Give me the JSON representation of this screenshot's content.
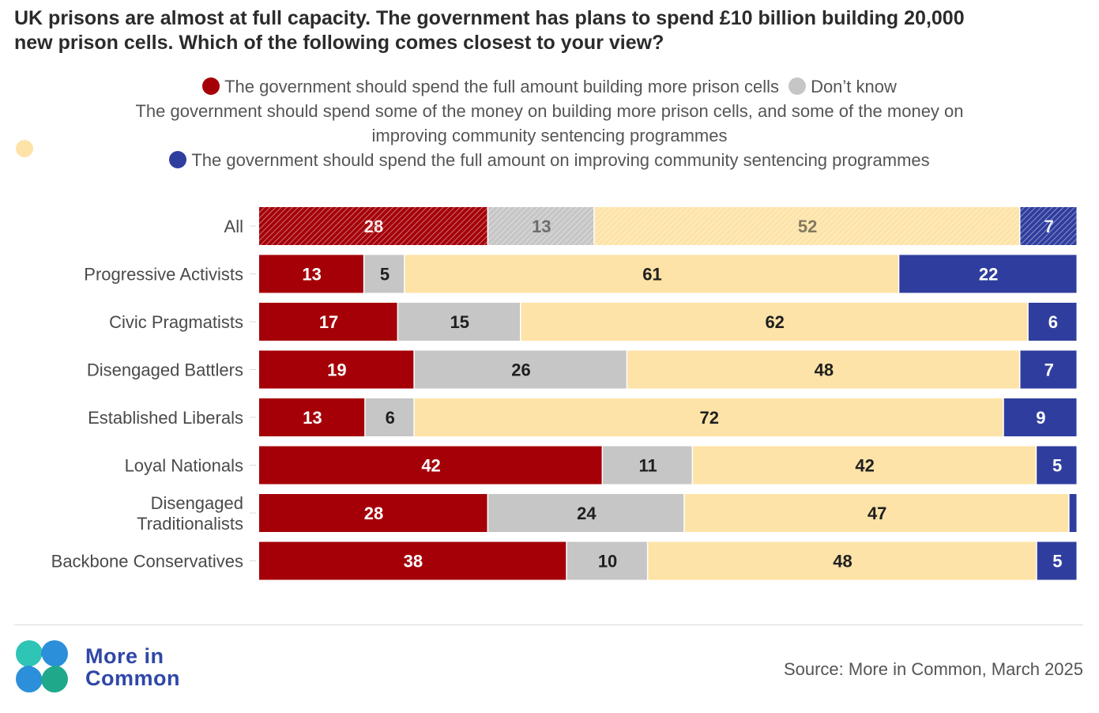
{
  "header": {
    "title": "UK prisons are almost at full capacity. The government has plans to spend £10 billion building 20,000\nnew prison cells. Which of the following comes closest to your view?"
  },
  "legend": {
    "full_cells": "The government should spend the full amount building more prison cells",
    "dont_know": "Don’t know",
    "some_each": "The government should spend some of the money on building more prison cells, and some of the money on\nimproving community sentencing programmes",
    "full_community": "The government should spend the full amount on improving community sentencing programmes"
  },
  "colors": {
    "full_cells": "#a50008",
    "dont_know": "#c6c6c6",
    "some_each": "#fde3a7",
    "full_community": "#2f3e9e"
  },
  "chart_data": {
    "type": "bar",
    "orientation": "horizontal-stacked-100",
    "categories": [
      "All",
      "Progressive Activists",
      "Civic Pragmatists",
      "Disengaged Battlers",
      "Established Liberals",
      "Loyal Nationals",
      "Disengaged\nTraditionalists",
      "Backbone Conservatives"
    ],
    "series": [
      {
        "name": "The government should spend the full amount building more prison cells",
        "color": "#a50008",
        "values": [
          28,
          13,
          17,
          19,
          13,
          42,
          28,
          38
        ]
      },
      {
        "name": "Don’t know",
        "color": "#c6c6c6",
        "values": [
          13,
          5,
          15,
          26,
          6,
          11,
          24,
          10
        ]
      },
      {
        "name": "The government should spend some of the money on building more prison cells, and some of the money on improving community sentencing programmes",
        "color": "#fde3a7",
        "values": [
          52,
          61,
          62,
          48,
          72,
          42,
          47,
          48
        ]
      },
      {
        "name": "The government should spend the full amount on improving community sentencing programmes",
        "color": "#2f3e9e",
        "values": [
          7,
          22,
          6,
          7,
          9,
          5,
          1,
          5
        ]
      }
    ],
    "hidden_labels": [
      [
        false,
        false,
        false,
        false
      ],
      [
        false,
        false,
        false,
        false
      ],
      [
        false,
        false,
        false,
        false
      ],
      [
        false,
        false,
        false,
        false
      ],
      [
        false,
        false,
        false,
        false
      ],
      [
        false,
        false,
        false,
        false
      ],
      [
        false,
        false,
        false,
        true
      ],
      [
        false,
        false,
        false,
        false
      ]
    ],
    "hatched_rows": [
      "All"
    ],
    "xlim": [
      0,
      100
    ],
    "grid": false,
    "legend_position": "top"
  },
  "footer": {
    "brand": "More in\nCommon",
    "source": "Source: More in Common, March 2025"
  }
}
